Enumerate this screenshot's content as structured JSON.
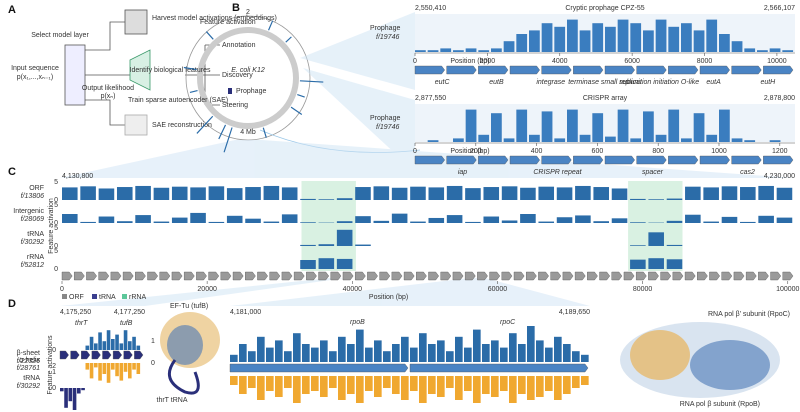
{
  "panel_a": {
    "label": "A",
    "select_layer": "Select model layer",
    "harvest": "Harvest model activations (embeddings)",
    "input_label": "Input sequence",
    "input_formula": "p(x₁,...,xₙ₋₁)",
    "output_label": "Output likelihood",
    "output_formula": "p(xₙ)",
    "train": "Train sparse autoencoder (SAE)",
    "reconstruction": "SAE reconstruction",
    "identify": "Identify biological features",
    "outcomes": [
      "Annotation",
      "Discovery",
      "Steering"
    ]
  },
  "panel_b": {
    "label": "B",
    "circle": {
      "title": "Feature activation",
      "organism": "E. coli K12",
      "legend": "Prophage",
      "ring_labels": [
        "2",
        "4 Mb"
      ],
      "genome_lim": [
        0,
        4.64
      ],
      "ylim": [
        0,
        1
      ],
      "positions": [
        0.3,
        0.6,
        1.2,
        1.4,
        1.6,
        2.1,
        2.55,
        2.65,
        2.87,
        3.3,
        3.6,
        4.1
      ],
      "values": [
        0.4,
        0.3,
        0.9,
        0.3,
        0.5,
        0.4,
        1,
        0.6,
        0.9,
        0.3,
        0.5,
        0.4
      ]
    },
    "tracks": [
      {
        "start": "2,550,410",
        "end": "2,566,107",
        "title": "Cryptic prophage CPZ-55",
        "feature": "Prophage",
        "feature_id": "f/19746",
        "xlim": [
          0,
          10500
        ],
        "xticks": [
          0,
          2000,
          4000,
          6000,
          8000,
          10000
        ],
        "x_label": "Position (bp)",
        "ylim": [
          0,
          1
        ],
        "color": "#3a7dbf",
        "values": [
          0.05,
          0.05,
          0.1,
          0.05,
          0.1,
          0.05,
          0.1,
          0.3,
          0.5,
          0.6,
          0.8,
          0.7,
          0.9,
          0.6,
          0.8,
          0.7,
          0.9,
          0.8,
          0.6,
          0.9,
          0.7,
          0.8,
          0.6,
          0.9,
          0.5,
          0.3,
          0.1,
          0.05,
          0.1,
          0.05
        ],
        "genes": [
          "eutC",
          "eutB",
          "integrase",
          "terminase small subunit",
          "replication initiation O-like",
          "eutA",
          "eutH"
        ]
      },
      {
        "start": "2,877,550",
        "end": "2,878,800",
        "title": "CRISPR array",
        "feature": "Prophage",
        "feature_id": "f/19746",
        "xlim": [
          0,
          1250
        ],
        "xticks": [
          0,
          200,
          400,
          600,
          800,
          1000,
          1200
        ],
        "x_label": "Position (bp)",
        "ylim": [
          0,
          1
        ],
        "color": "#3a7dbf",
        "values": [
          0,
          0.05,
          0,
          0.1,
          0.9,
          0.2,
          0.8,
          0.1,
          0.9,
          0.2,
          0.85,
          0.1,
          0.9,
          0.2,
          0.8,
          0.15,
          0.9,
          0.1,
          0.85,
          0.2,
          0.9,
          0.1,
          0.8,
          0.2,
          0.9,
          0.1,
          0.05,
          0,
          0.05,
          0
        ],
        "genes": [
          "iap",
          "CRISPR repeat",
          "spacer",
          "cas2"
        ]
      }
    ]
  },
  "panel_c": {
    "label": "C",
    "start": "4,130,800",
    "end": "4,230,000",
    "y_label": "Feature activation",
    "xlim": [
      0,
      101000
    ],
    "xticks": [
      0,
      20000,
      40000,
      60000,
      80000,
      100000
    ],
    "x_label": "Position (bp)",
    "ylim": [
      0,
      5
    ],
    "yticks": [
      0,
      5
    ],
    "highlights": [
      [
        33000,
        40500
      ],
      [
        78000,
        85500
      ]
    ],
    "legend": [
      {
        "name": "ORF",
        "color": "#888888"
      },
      {
        "name": "tRNA",
        "color": "#3b3f8f"
      },
      {
        "name": "rRNA",
        "color": "#5cc79a"
      }
    ],
    "tracks": [
      {
        "name": "ORF",
        "id": "f/13806",
        "color": "#2b6ca8",
        "values": [
          3.5,
          3.8,
          3.2,
          3.6,
          3.9,
          3.4,
          3.7,
          3.5,
          3.8,
          3.3,
          3.6,
          3.9,
          3.5,
          0.3,
          0.2,
          0.5,
          3.6,
          3.8,
          3.4,
          3.7,
          3.5,
          3.9,
          3.3,
          3.6,
          3.8,
          3.4,
          3.7,
          3.5,
          3.9,
          3.6,
          3.2,
          0.3,
          0.2,
          0.4,
          3.7,
          3.5,
          3.8,
          3.6,
          3.9,
          3.4
        ]
      },
      {
        "name": "Intergenic",
        "id": "f/28069",
        "color": "#2b6ca8",
        "values": [
          2.5,
          0.3,
          1.8,
          0.5,
          2.2,
          0.4,
          1.5,
          2.8,
          0.3,
          2.0,
          1.2,
          0.4,
          2.4,
          0.2,
          0.1,
          0.5,
          1.9,
          0.6,
          2.6,
          0.4,
          1.4,
          2.2,
          0.3,
          1.8,
          0.7,
          2.5,
          0.4,
          1.6,
          2.1,
          0.5,
          1.3,
          0.2,
          0.1,
          0.6,
          2.3,
          0.4,
          1.7,
          0.3,
          2.0,
          1.5
        ]
      },
      {
        "name": "tRNA",
        "id": "f/30292",
        "color": "#2b6ca8",
        "values": [
          0,
          0,
          0,
          0,
          0,
          0,
          0,
          0,
          0,
          0,
          0,
          0,
          0,
          0.3,
          0.5,
          4.5,
          0.4,
          0,
          0,
          0,
          0,
          0,
          0,
          0,
          0,
          0,
          0,
          0,
          0,
          0,
          0,
          0.2,
          3.8,
          0.3,
          0,
          0,
          0,
          0,
          0,
          0
        ]
      },
      {
        "name": "rRNA",
        "id": "f/52812",
        "color": "#2b6ca8",
        "values": [
          0,
          0,
          0,
          0,
          0,
          0,
          0,
          0,
          0,
          0,
          0,
          0,
          0,
          2.5,
          3,
          2.8,
          0,
          0,
          0,
          0,
          0,
          0,
          0,
          0,
          0,
          0,
          0,
          0,
          0,
          0,
          0,
          2.6,
          3,
          2.7,
          0,
          0,
          0,
          0,
          0,
          0
        ]
      }
    ]
  },
  "panel_d": {
    "label": "D",
    "y_label": "Feature activations",
    "left": {
      "start": "4,175,250",
      "end": "4,177,250",
      "genes": [
        "thrT",
        "tufB"
      ],
      "tracks": [
        {
          "name": "α-helix",
          "id": "f/28761",
          "color": "#2b6ca8",
          "ylim": [
            0,
            1
          ],
          "yticks": [
            0,
            1
          ],
          "values": [
            0,
            0,
            0,
            0,
            0,
            0,
            0.2,
            0.6,
            0.3,
            0.8,
            0.4,
            0.9,
            0.5,
            0.7,
            0.3,
            0.9,
            0.4,
            0.6,
            0.2,
            0
          ]
        },
        {
          "name": "β-sheet",
          "id": "f/22326",
          "color": "#f0a830",
          "ylim": [
            0,
            1
          ],
          "yticks": [
            0,
            1
          ],
          "values": [
            0,
            0,
            0,
            0,
            0,
            0,
            0.3,
            0.7,
            0.2,
            0.8,
            0.5,
            0.9,
            0.3,
            0.6,
            0.8,
            0.4,
            0.7,
            0.3,
            0.5,
            0
          ]
        },
        {
          "name": "tRNA",
          "id": "f/30292",
          "color": "#2a2f7a",
          "ylim": [
            0,
            2
          ],
          "yticks": [
            0,
            2
          ],
          "values": [
            0.3,
            1.8,
            1.2,
            2,
            0.5,
            0.2,
            0,
            0,
            0,
            0,
            0,
            0,
            0,
            0,
            0,
            0,
            0,
            0,
            0,
            0
          ]
        }
      ]
    },
    "structure1": {
      "title": "EF-Tu (tufB)",
      "sub": "thrT tRNA"
    },
    "middle": {
      "start": "4,181,000",
      "end": "4,189,650",
      "genes": [
        "rpoB",
        "rpoC"
      ],
      "tracks": [
        {
          "name": "α-helix",
          "color": "#2b6ca8",
          "ylim": [
            0,
            1
          ],
          "values": [
            0.2,
            0.5,
            0.3,
            0.7,
            0.4,
            0.6,
            0.3,
            0.8,
            0.5,
            0.4,
            0.6,
            0.3,
            0.7,
            0.5,
            0.9,
            0.4,
            0.6,
            0.3,
            0.5,
            0.7,
            0.4,
            0.8,
            0.5,
            0.6,
            0.3,
            0.7,
            0.4,
            0.9,
            0.5,
            0.6,
            0.4,
            0.8,
            0.5,
            1,
            0.6,
            0.4,
            0.7,
            0.5,
            0.3,
            0.2
          ]
        },
        {
          "name": "β-sheet",
          "color": "#f0a830",
          "ylim": [
            0,
            1
          ],
          "values": [
            0.3,
            0.6,
            0.4,
            0.8,
            0.5,
            0.7,
            0.4,
            0.9,
            0.6,
            0.5,
            0.7,
            0.4,
            0.8,
            0.6,
            0.9,
            0.5,
            0.7,
            0.4,
            0.6,
            0.8,
            0.5,
            0.9,
            0.6,
            0.7,
            0.4,
            0.8,
            0.5,
            0.9,
            0.6,
            0.7,
            0.5,
            0.9,
            0.6,
            0.8,
            0.7,
            0.5,
            0.8,
            0.6,
            0.4,
            0.3
          ]
        }
      ]
    },
    "structure2": {
      "top": "RNA pol β' subunit (RpoC)",
      "bottom": "RNA pol β subunit (RpoB)"
    }
  }
}
